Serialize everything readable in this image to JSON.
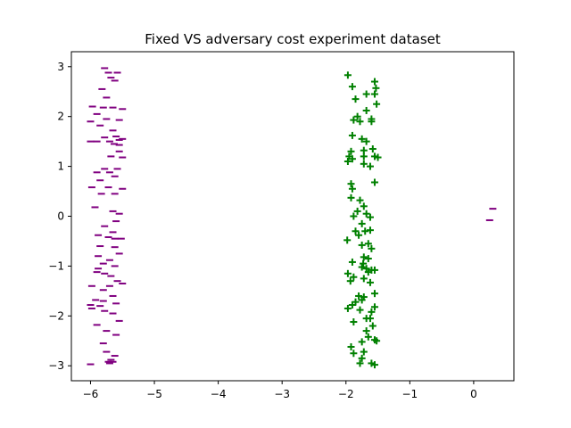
{
  "chart_data": {
    "type": "scatter",
    "title": "Fixed VS adversary cost experiment dataset",
    "xlabel": "",
    "ylabel": "",
    "xlim": [
      -6.3,
      0.63
    ],
    "ylim": [
      -3.3,
      3.3
    ],
    "xticks": [
      -6,
      -5,
      -4,
      -3,
      -2,
      -1,
      0
    ],
    "yticks": [
      -3,
      -2,
      -1,
      0,
      1,
      2,
      3
    ],
    "grid": false,
    "legend": "none",
    "series": [
      {
        "marker": "minus",
        "color": "#800080",
        "points": [
          [
            -5.78,
            2.97
          ],
          [
            -5.72,
            2.88
          ],
          [
            -5.58,
            2.88
          ],
          [
            -5.68,
            2.78
          ],
          [
            -5.62,
            2.72
          ],
          [
            -5.82,
            2.55
          ],
          [
            -5.75,
            2.38
          ],
          [
            -5.97,
            2.2
          ],
          [
            -5.8,
            2.18
          ],
          [
            -5.65,
            2.18
          ],
          [
            -5.5,
            2.15
          ],
          [
            -5.9,
            2.05
          ],
          [
            -5.75,
            1.95
          ],
          [
            -6.0,
            1.9
          ],
          [
            -5.55,
            1.93
          ],
          [
            -5.85,
            1.82
          ],
          [
            -5.65,
            1.72
          ],
          [
            -5.6,
            1.6
          ],
          [
            -5.78,
            1.58
          ],
          [
            -5.5,
            1.55
          ],
          [
            -5.55,
            1.53
          ],
          [
            -5.9,
            1.5
          ],
          [
            -5.7,
            1.5
          ],
          [
            -6.0,
            1.5
          ],
          [
            -5.63,
            1.45
          ],
          [
            -5.55,
            1.43
          ],
          [
            -5.55,
            1.3
          ],
          [
            -5.68,
            1.2
          ],
          [
            -5.5,
            1.18
          ],
          [
            -5.78,
            0.95
          ],
          [
            -5.58,
            0.95
          ],
          [
            -5.9,
            0.88
          ],
          [
            -5.7,
            0.88
          ],
          [
            -5.62,
            0.8
          ],
          [
            -5.85,
            0.72
          ],
          [
            -5.98,
            0.58
          ],
          [
            -5.72,
            0.58
          ],
          [
            -5.5,
            0.55
          ],
          [
            -5.83,
            0.45
          ],
          [
            -5.62,
            0.45
          ],
          [
            -5.93,
            0.18
          ],
          [
            -5.65,
            0.1
          ],
          [
            -5.55,
            0.05
          ],
          [
            -5.6,
            -0.1
          ],
          [
            -5.78,
            -0.2
          ],
          [
            -5.65,
            -0.32
          ],
          [
            -5.88,
            -0.38
          ],
          [
            -5.72,
            -0.42
          ],
          [
            -5.62,
            -0.45
          ],
          [
            -5.52,
            -0.45
          ],
          [
            -5.85,
            -0.6
          ],
          [
            -5.62,
            -0.62
          ],
          [
            -5.55,
            -0.75
          ],
          [
            -5.88,
            -0.8
          ],
          [
            -5.7,
            -0.88
          ],
          [
            -5.8,
            -0.95
          ],
          [
            -5.62,
            -1.0
          ],
          [
            -5.88,
            -1.05
          ],
          [
            -5.9,
            -1.12
          ],
          [
            -5.78,
            -1.15
          ],
          [
            -5.68,
            -1.2
          ],
          [
            -5.58,
            -1.3
          ],
          [
            -5.5,
            -1.35
          ],
          [
            -5.98,
            -1.4
          ],
          [
            -5.7,
            -1.4
          ],
          [
            -5.8,
            -1.48
          ],
          [
            -5.65,
            -1.6
          ],
          [
            -5.92,
            -1.68
          ],
          [
            -5.8,
            -1.7
          ],
          [
            -5.6,
            -1.75
          ],
          [
            -6.0,
            -1.78
          ],
          [
            -5.85,
            -1.8
          ],
          [
            -5.98,
            -1.85
          ],
          [
            -5.78,
            -1.9
          ],
          [
            -5.65,
            -1.95
          ],
          [
            -5.55,
            -2.1
          ],
          [
            -5.9,
            -2.18
          ],
          [
            -5.75,
            -2.3
          ],
          [
            -5.6,
            -2.38
          ],
          [
            -5.8,
            -2.55
          ],
          [
            -5.75,
            -2.72
          ],
          [
            -5.62,
            -2.8
          ],
          [
            -5.68,
            -2.88
          ],
          [
            -5.72,
            -2.92
          ],
          [
            -6.0,
            -2.97
          ],
          [
            -5.7,
            -2.95
          ],
          [
            -5.65,
            -2.92
          ],
          [
            0.3,
            0.15
          ],
          [
            0.25,
            -0.08
          ]
        ]
      },
      {
        "marker": "plus",
        "color": "#008000",
        "points": [
          [
            -1.97,
            2.83
          ],
          [
            -1.9,
            2.6
          ],
          [
            -1.55,
            2.7
          ],
          [
            -1.53,
            2.57
          ],
          [
            -1.68,
            2.45
          ],
          [
            -1.55,
            2.45
          ],
          [
            -1.85,
            2.35
          ],
          [
            -1.52,
            2.25
          ],
          [
            -1.68,
            2.12
          ],
          [
            -1.82,
            2.0
          ],
          [
            -1.88,
            1.93
          ],
          [
            -1.78,
            1.9
          ],
          [
            -1.6,
            1.95
          ],
          [
            -1.6,
            1.9
          ],
          [
            -1.9,
            1.62
          ],
          [
            -1.75,
            1.55
          ],
          [
            -1.68,
            1.5
          ],
          [
            -1.58,
            1.35
          ],
          [
            -1.72,
            1.32
          ],
          [
            -1.92,
            1.3
          ],
          [
            -1.95,
            1.2
          ],
          [
            -1.9,
            1.15
          ],
          [
            -1.97,
            1.1
          ],
          [
            -1.72,
            1.2
          ],
          [
            -1.55,
            1.2
          ],
          [
            -1.5,
            1.18
          ],
          [
            -1.72,
            1.05
          ],
          [
            -1.62,
            1.0
          ],
          [
            -1.55,
            0.68
          ],
          [
            -1.92,
            0.65
          ],
          [
            -1.9,
            0.55
          ],
          [
            -1.92,
            0.37
          ],
          [
            -1.78,
            0.32
          ],
          [
            -1.72,
            0.2
          ],
          [
            -1.82,
            0.1
          ],
          [
            -1.68,
            0.05
          ],
          [
            -1.88,
            0.0
          ],
          [
            -1.62,
            -0.02
          ],
          [
            -1.75,
            -0.15
          ],
          [
            -1.85,
            -0.3
          ],
          [
            -1.7,
            -0.3
          ],
          [
            -1.62,
            -0.28
          ],
          [
            -1.8,
            -0.38
          ],
          [
            -1.98,
            -0.48
          ],
          [
            -1.75,
            -0.58
          ],
          [
            -1.65,
            -0.55
          ],
          [
            -1.6,
            -0.65
          ],
          [
            -1.72,
            -0.82
          ],
          [
            -1.65,
            -0.85
          ],
          [
            -1.9,
            -0.92
          ],
          [
            -1.73,
            -0.95
          ],
          [
            -1.75,
            -1.02
          ],
          [
            -1.68,
            -1.05
          ],
          [
            -1.6,
            -1.08
          ],
          [
            -1.55,
            -1.08
          ],
          [
            -1.65,
            -1.12
          ],
          [
            -1.97,
            -1.15
          ],
          [
            -1.88,
            -1.22
          ],
          [
            -1.72,
            -1.25
          ],
          [
            -1.93,
            -1.3
          ],
          [
            -1.62,
            -1.33
          ],
          [
            -1.55,
            -1.55
          ],
          [
            -1.8,
            -1.6
          ],
          [
            -1.72,
            -1.62
          ],
          [
            -1.75,
            -1.68
          ],
          [
            -1.85,
            -1.72
          ],
          [
            -1.9,
            -1.78
          ],
          [
            -1.97,
            -1.85
          ],
          [
            -1.55,
            -1.82
          ],
          [
            -1.78,
            -1.88
          ],
          [
            -1.6,
            -1.92
          ],
          [
            -1.68,
            -2.05
          ],
          [
            -1.62,
            -2.05
          ],
          [
            -1.88,
            -2.12
          ],
          [
            -1.58,
            -2.2
          ],
          [
            -1.68,
            -2.3
          ],
          [
            -1.65,
            -2.42
          ],
          [
            -1.55,
            -2.48
          ],
          [
            -1.75,
            -2.52
          ],
          [
            -1.52,
            -2.5
          ],
          [
            -1.92,
            -2.62
          ],
          [
            -1.88,
            -2.75
          ],
          [
            -1.72,
            -2.72
          ],
          [
            -1.75,
            -2.85
          ],
          [
            -1.6,
            -2.95
          ],
          [
            -1.78,
            -2.95
          ],
          [
            -1.55,
            -2.98
          ]
        ]
      }
    ]
  }
}
